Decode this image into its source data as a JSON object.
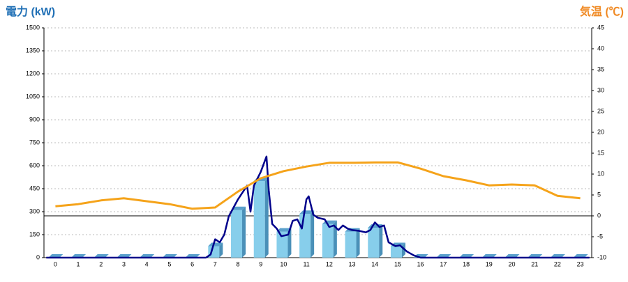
{
  "chart_data": {
    "type": "combo",
    "y_label": "電力 (kW)",
    "y2_label": "気温 (℃)",
    "categories": [
      "0",
      "1",
      "2",
      "3",
      "4",
      "5",
      "6",
      "7",
      "8",
      "9",
      "10",
      "11",
      "12",
      "13",
      "14",
      "15",
      "16",
      "17",
      "18",
      "19",
      "20",
      "21",
      "22",
      "23"
    ],
    "xlim": [
      -0.5,
      23.5
    ],
    "ylim": [
      0,
      1500
    ],
    "yticks": [
      0,
      150,
      300,
      450,
      600,
      750,
      900,
      1050,
      1200,
      1350,
      1500
    ],
    "y2lim": [
      -10,
      45
    ],
    "y2ticks": [
      -10,
      -5,
      0,
      5,
      10,
      15,
      20,
      25,
      30,
      35,
      40,
      45
    ],
    "grid": true,
    "series": [
      {
        "type": "bar",
        "color": "#87ceeb",
        "values": [
          0,
          0,
          0,
          0,
          0,
          0,
          0,
          75,
          310,
          500,
          170,
          285,
          220,
          170,
          195,
          75,
          0,
          0,
          0,
          0,
          0,
          0,
          0,
          0
        ]
      },
      {
        "type": "line",
        "color": "#00008b",
        "x": [
          -0.4,
          6.6,
          6.8,
          7.0,
          7.2,
          7.4,
          7.6,
          8.0,
          8.4,
          8.55,
          8.7,
          9.0,
          9.15,
          9.25,
          9.35,
          9.5,
          9.7,
          9.9,
          10.2,
          10.4,
          10.6,
          10.8,
          11.0,
          11.1,
          11.3,
          11.5,
          11.8,
          12.0,
          12.2,
          12.4,
          12.6,
          12.8,
          13.0,
          13.3,
          13.6,
          13.8,
          14.0,
          14.2,
          14.4,
          14.6,
          14.9,
          15.1,
          15.4,
          15.7,
          16.0,
          23.4
        ],
        "values": [
          0,
          0,
          20,
          120,
          100,
          150,
          270,
          380,
          470,
          300,
          470,
          560,
          620,
          660,
          440,
          220,
          190,
          140,
          150,
          240,
          250,
          190,
          380,
          400,
          280,
          260,
          250,
          200,
          210,
          180,
          210,
          190,
          180,
          175,
          165,
          180,
          230,
          200,
          210,
          100,
          75,
          80,
          40,
          15,
          0,
          0
        ]
      },
      {
        "type": "line",
        "axis": "y2",
        "color": "#f5a31a",
        "values": [
          2.3,
          2.8,
          3.7,
          4.2,
          3.5,
          2.8,
          1.7,
          2,
          5.8,
          9,
          10.7,
          11.8,
          12.7,
          12.7,
          12.8,
          12.8,
          11.3,
          9.5,
          8.5,
          7.3,
          7.5,
          7.3,
          4.8,
          4.2
        ]
      }
    ]
  }
}
